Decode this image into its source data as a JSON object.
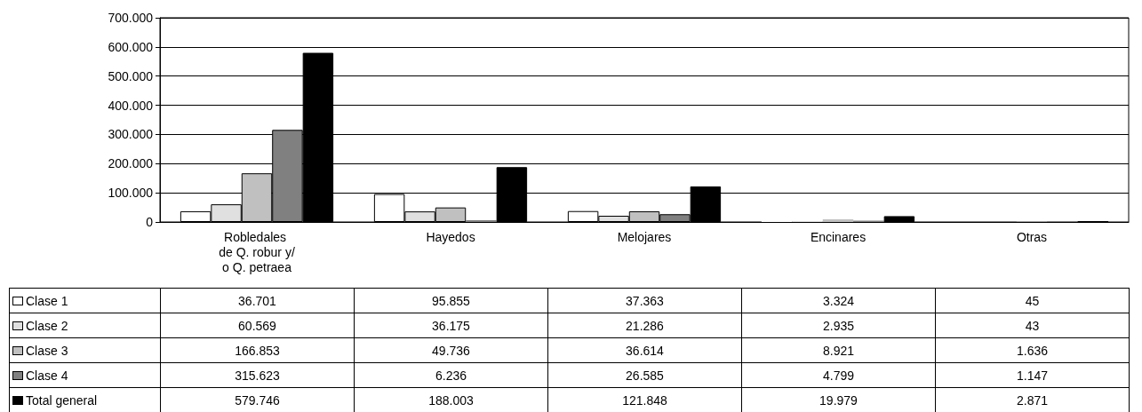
{
  "chart_data": {
    "type": "bar",
    "categories": [
      "Robledales de Q. robur y/o Q. petraea",
      "Hayedos",
      "Melojares",
      "Encinares",
      "Otras"
    ],
    "series": [
      {
        "name": "Clase 1",
        "color": "#ffffff",
        "values": [
          36701,
          95855,
          37363,
          3324,
          45
        ],
        "value_labels": [
          "36.701",
          "95.855",
          "37.363",
          "3.324",
          "45"
        ]
      },
      {
        "name": "Clase 2",
        "color": "#e0e0e0",
        "values": [
          60569,
          36175,
          21286,
          2935,
          43
        ],
        "value_labels": [
          "60.569",
          "36.175",
          "21.286",
          "2.935",
          "43"
        ]
      },
      {
        "name": "Clase 3",
        "color": "#c0c0c0",
        "values": [
          166853,
          49736,
          36614,
          8921,
          1636
        ],
        "value_labels": [
          "166.853",
          "49.736",
          "36.614",
          "8.921",
          "1.636"
        ]
      },
      {
        "name": "Clase 4",
        "color": "#808080",
        "values": [
          315623,
          6236,
          26585,
          4799,
          1147
        ],
        "value_labels": [
          "315.623",
          "6.236",
          "26.585",
          "4.799",
          "1.147"
        ]
      },
      {
        "name": "Total general",
        "color": "#000000",
        "values": [
          579746,
          188003,
          121848,
          19979,
          2871
        ],
        "value_labels": [
          "579.746",
          "188.003",
          "121.848",
          "19.979",
          "2.871"
        ]
      }
    ],
    "ylim": [
      0,
      700000
    ],
    "yticks": [
      {
        "value": 0,
        "label": "0"
      },
      {
        "value": 100000,
        "label": "100.000"
      },
      {
        "value": 200000,
        "label": "200.000"
      },
      {
        "value": 300000,
        "label": "300.000"
      },
      {
        "value": 400000,
        "label": "400.000"
      },
      {
        "value": 500000,
        "label": "500.000"
      },
      {
        "value": 600000,
        "label": "600.000"
      },
      {
        "value": 700000,
        "label": "700.000"
      }
    ],
    "grid": "y",
    "legend": "bottom left"
  }
}
